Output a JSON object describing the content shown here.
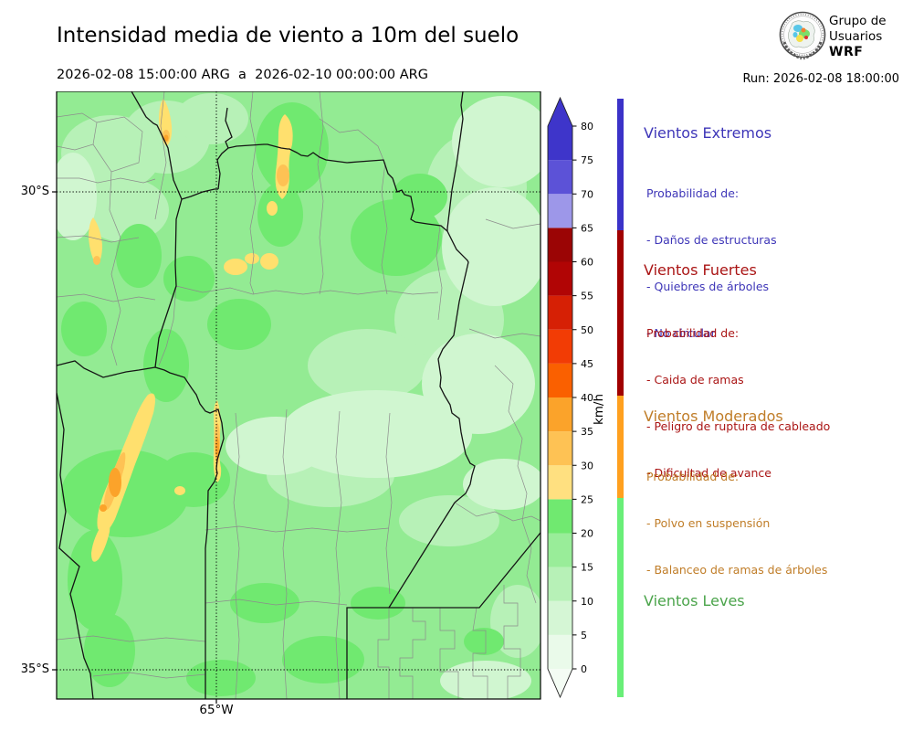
{
  "header": {
    "title": "Intensidad media de viento a 10m del suelo",
    "subtitle": "2026-02-08 15:00:00 ARG  a  2026-02-10 00:00:00 ARG",
    "run_label": "Run: 2026-02-08 18:00:00",
    "logo": {
      "line1": "Grupo de",
      "line2": "Usuarios",
      "line3": "WRF"
    }
  },
  "axes": {
    "lat_top": "30°S",
    "lat_bottom": "35°S",
    "lon": "65°W"
  },
  "colorbar": {
    "unit": "km/h",
    "ticks": [
      0,
      5,
      10,
      15,
      20,
      25,
      30,
      35,
      40,
      45,
      50,
      55,
      60,
      65,
      70,
      75,
      80
    ],
    "outline_color": "#222222",
    "over_color": "#3e35ca",
    "under_color": "#f4fcf4",
    "segments": [
      {
        "from": 0,
        "to": 5,
        "color": "#eafaea"
      },
      {
        "from": 5,
        "to": 10,
        "color": "#d5f6d5"
      },
      {
        "from": 10,
        "to": 15,
        "color": "#b7f1b7"
      },
      {
        "from": 15,
        "to": 20,
        "color": "#99ed99"
      },
      {
        "from": 20,
        "to": 25,
        "color": "#70e970"
      },
      {
        "from": 25,
        "to": 30,
        "color": "#ffe080"
      },
      {
        "from": 30,
        "to": 35,
        "color": "#fec254"
      },
      {
        "from": 35,
        "to": 40,
        "color": "#fba32a"
      },
      {
        "from": 40,
        "to": 45,
        "color": "#fa6000"
      },
      {
        "from": 45,
        "to": 50,
        "color": "#f23c05"
      },
      {
        "from": 50,
        "to": 55,
        "color": "#d62005"
      },
      {
        "from": 55,
        "to": 60,
        "color": "#b10505"
      },
      {
        "from": 60,
        "to": 65,
        "color": "#9b0505"
      },
      {
        "from": 65,
        "to": 70,
        "color": "#9d97e9"
      },
      {
        "from": 70,
        "to": 75,
        "color": "#5c52d7"
      },
      {
        "from": 75,
        "to": 80,
        "color": "#3e35ca"
      }
    ]
  },
  "legend": {
    "sections": [
      {
        "title": "Vientos Extremos",
        "text_color": "#3e36b8",
        "strip_color": "#3b32c8",
        "intro": "Probabilidad de:",
        "items": [
          "- Daños de estructuras",
          "- Quiebres de árboles",
          "- No circular"
        ]
      },
      {
        "title": "Vientos Fuertes",
        "text_color": "#aa1515",
        "strip_color": "#a00000",
        "intro": "Probabilidad de:",
        "items": [
          "- Caida de ramas",
          "- Peligro de ruptura de cableado",
          "- Dificultad de avance"
        ]
      },
      {
        "title": "Vientos Moderados",
        "text_color": "#c07d28",
        "strip_color": "#ffa01e",
        "intro": "Probabilidad de:",
        "items": [
          "- Polvo en suspensión",
          "- Balanceo de ramas de árboles"
        ]
      },
      {
        "title": "Vientos Leves",
        "text_color": "#4ba44b",
        "strip_color": "#69ef78",
        "intro": "",
        "items": []
      }
    ]
  }
}
